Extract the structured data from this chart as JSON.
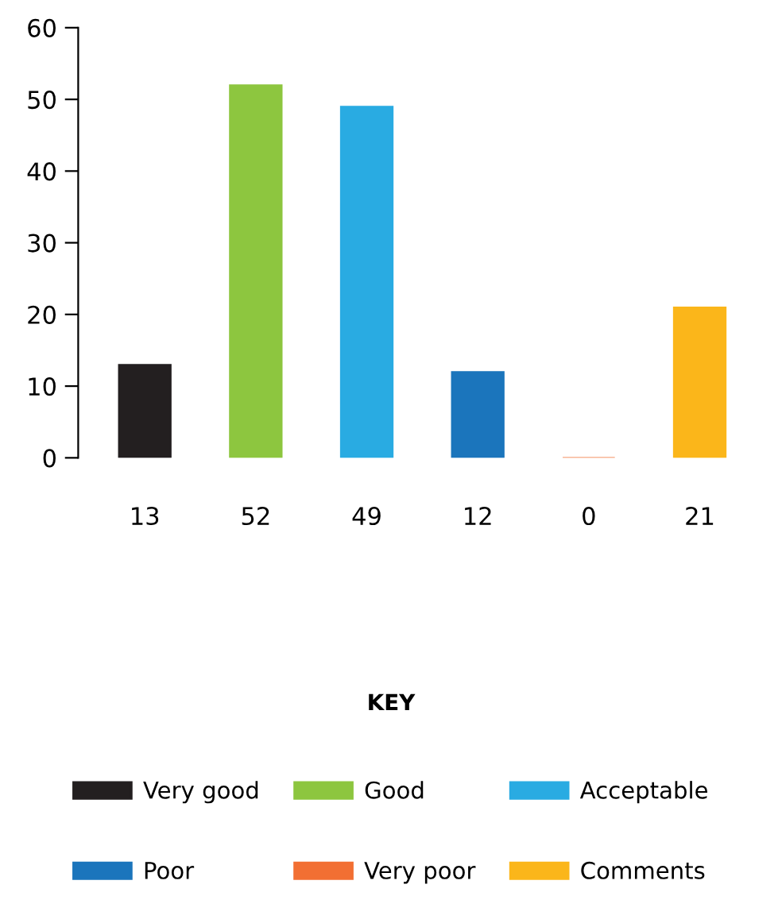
{
  "chart_data": {
    "type": "bar",
    "categories": [
      "13",
      "52",
      "49",
      "12",
      "0",
      "21"
    ],
    "series": [
      {
        "name": "Very good",
        "color": "#231f20",
        "values": [
          13,
          null,
          null,
          null,
          null,
          null
        ]
      },
      {
        "name": "Good",
        "color": "#8dc63f",
        "values": [
          null,
          52,
          null,
          null,
          null,
          null
        ]
      },
      {
        "name": "Acceptable",
        "color": "#29abe2",
        "values": [
          null,
          null,
          49,
          null,
          null,
          null
        ]
      },
      {
        "name": "Poor",
        "color": "#1b75bc",
        "values": [
          null,
          null,
          null,
          12,
          null,
          null
        ]
      },
      {
        "name": "Very poor",
        "color": "#f26f33",
        "values": [
          null,
          null,
          null,
          null,
          0,
          null
        ]
      },
      {
        "name": "Comments",
        "color": "#fbb61a",
        "values": [
          null,
          null,
          null,
          null,
          null,
          21
        ]
      }
    ],
    "ylim": [
      0,
      60
    ],
    "yticks": [
      0,
      10,
      20,
      30,
      40,
      50,
      60
    ],
    "grid": false,
    "legend": "bottom",
    "legend_title": "KEY"
  }
}
